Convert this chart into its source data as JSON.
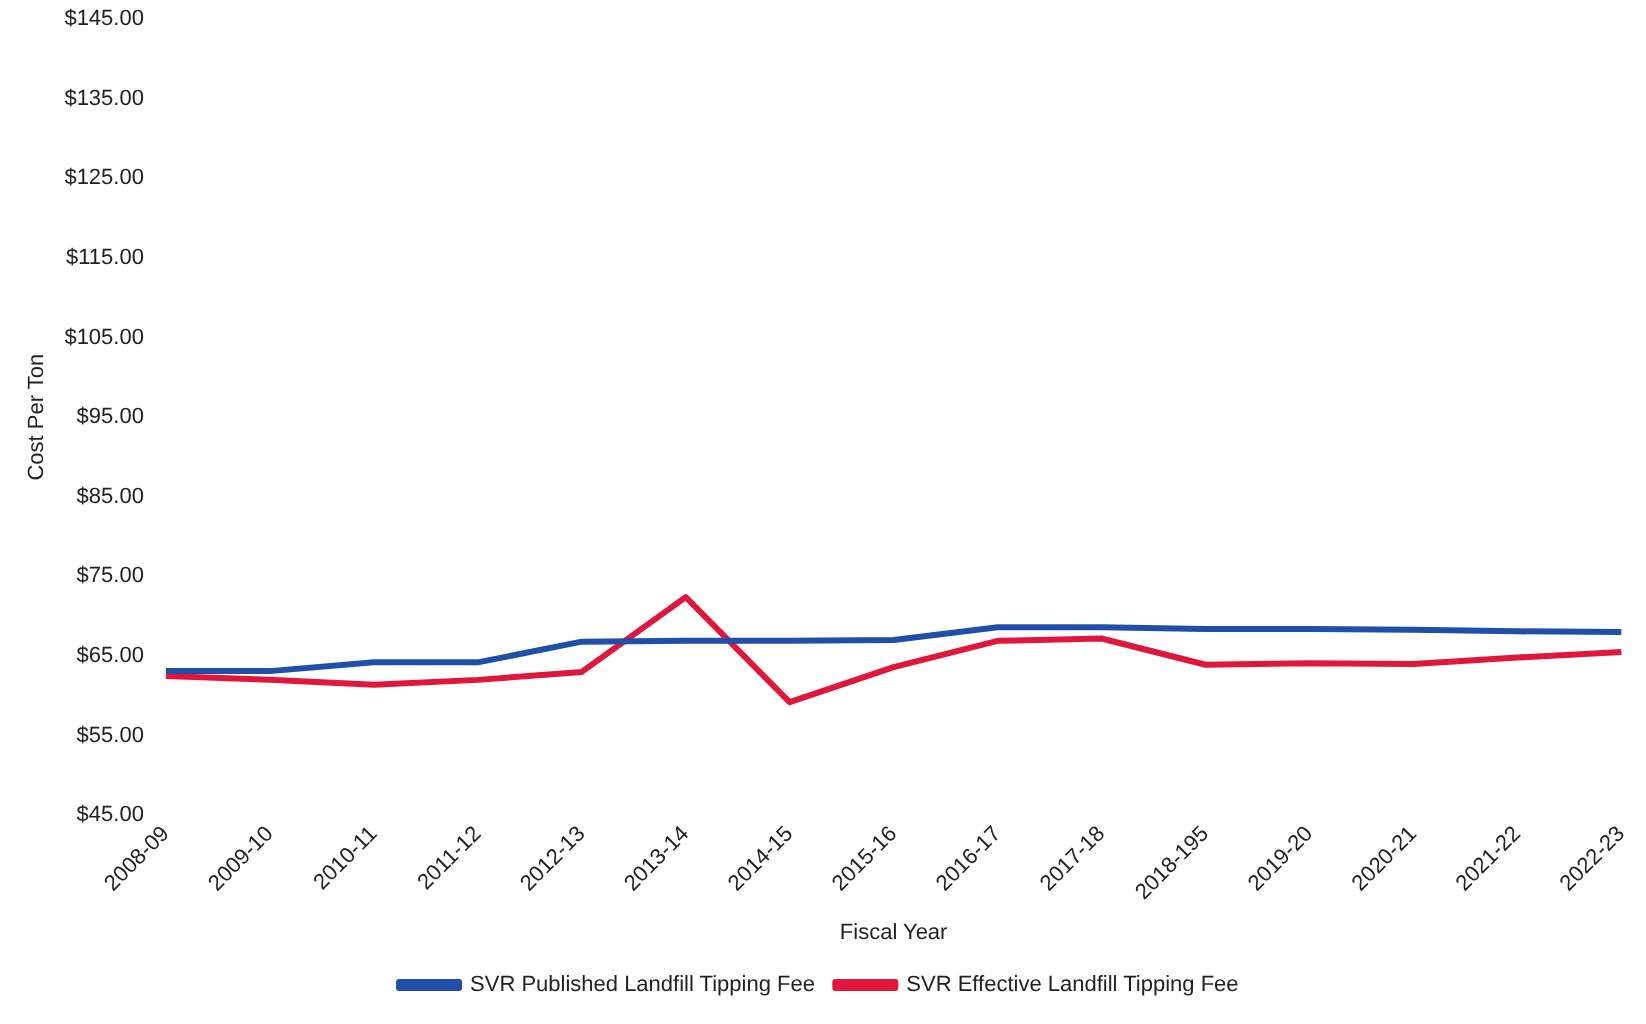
{
  "chart_data": {
    "type": "line",
    "xlabel": "Fiscal Year",
    "ylabel": "Cost Per Ton",
    "categories": [
      "2008-09",
      "2009-10",
      "2010-11",
      "2011-12",
      "2012-13",
      "2013-14",
      "2014-15",
      "2015-16",
      "2016-17",
      "2017-18",
      "2018-195",
      "2019-20",
      "2020-21",
      "2021-22",
      "2022-23"
    ],
    "series": [
      {
        "name": "SVR Published Landfill Tipping Fee",
        "color": "#1f4fa8",
        "values": [
          63.1,
          63.1,
          64.2,
          64.2,
          66.8,
          66.9,
          66.9,
          67,
          68.6,
          68.6,
          68.4,
          68.4,
          68.3,
          68.1,
          68
        ]
      },
      {
        "name": "SVR Effective Landfill Tipping Fee",
        "color": "#e0163c",
        "values": [
          62.5,
          62,
          61.4,
          62,
          63,
          72.4,
          59.2,
          63.6,
          66.9,
          67.2,
          63.9,
          64.1,
          64,
          64.8,
          65.5
        ]
      }
    ],
    "ylim": [
      45,
      145
    ],
    "yticks": [
      {
        "value": 45,
        "label": "$45.00"
      },
      {
        "value": 55,
        "label": "$55.00"
      },
      {
        "value": 65,
        "label": "$65.00"
      },
      {
        "value": 75,
        "label": "$75.00"
      },
      {
        "value": 85,
        "label": "$85.00"
      },
      {
        "value": 95,
        "label": "$95.00"
      },
      {
        "value": 105,
        "label": "$105.00"
      },
      {
        "value": 115,
        "label": "$115.00"
      },
      {
        "value": 125,
        "label": "$125.00"
      },
      {
        "value": 135,
        "label": "$135.00"
      },
      {
        "value": 145,
        "label": "$145.00"
      }
    ],
    "grid": false,
    "legend": "bottom",
    "marker": "none",
    "line_style": "solid"
  }
}
